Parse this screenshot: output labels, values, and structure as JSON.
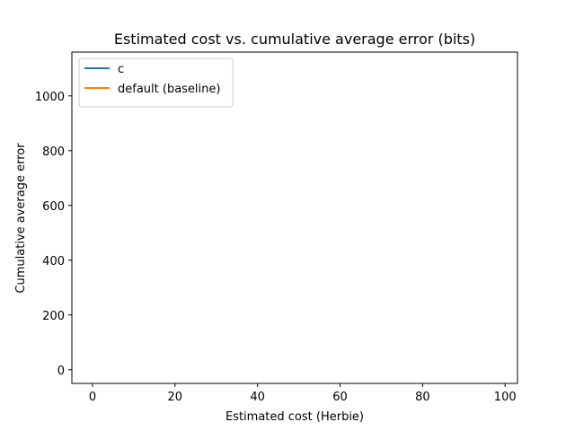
{
  "chart_data": {
    "type": "line",
    "title": "Estimated cost vs. cumulative average error (bits)",
    "xlabel": "Estimated cost (Herbie)",
    "ylabel": "Cumulative average error",
    "xlim": [
      -5,
      103
    ],
    "ylim": [
      -50,
      1160
    ],
    "xticks": [
      0,
      20,
      40,
      60,
      80,
      100
    ],
    "yticks": [
      0,
      200,
      400,
      600,
      800,
      1000
    ],
    "grid": false,
    "legend_position": "top-left",
    "series": [
      {
        "name": "c",
        "color": "#1f77b4",
        "x": [],
        "y": []
      },
      {
        "name": "default (baseline)",
        "color": "#ff7f0e",
        "x": [],
        "y": []
      }
    ]
  }
}
